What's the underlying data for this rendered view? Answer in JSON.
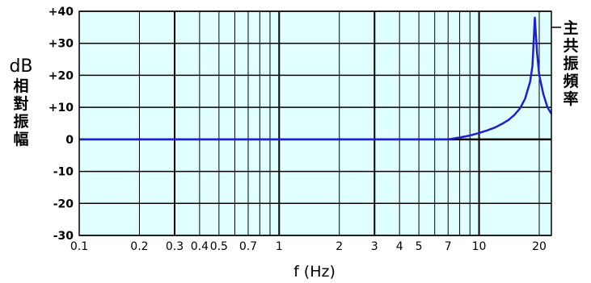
{
  "chart_data": {
    "type": "line",
    "title": "",
    "xlabel": "f (Hz)",
    "ylabel": "dB",
    "ylabel_sub": "相對振幅",
    "x_scale": "log",
    "xlim": [
      0.1,
      23
    ],
    "ylim": [
      -30,
      40
    ],
    "grid": true,
    "background_color": "#e0ffff",
    "line_color": "#1f1fd6",
    "y_ticks": [
      40,
      30,
      20,
      10,
      0,
      -10,
      -20,
      -30
    ],
    "y_tick_labels": [
      "+40",
      "+30",
      "+20",
      "+10",
      "0",
      "-10",
      "-20",
      "-30"
    ],
    "x_ticks": [
      0.1,
      0.2,
      0.3,
      0.4,
      0.5,
      0.7,
      1,
      2,
      3,
      4,
      5,
      7,
      10,
      20
    ],
    "x_tick_labels": [
      "0.1",
      "0.2",
      "0.3",
      "0.4",
      "0.5",
      "0.7",
      "1",
      "2",
      "3",
      "4",
      "5",
      "7",
      "10",
      "20"
    ],
    "x_minor": [
      0.6,
      0.8,
      0.9,
      6,
      8,
      9
    ],
    "annotation": {
      "text": "主共振頻率",
      "x": 19,
      "y": 35
    },
    "series": [
      {
        "x": [
          0.1,
          0.5,
          1,
          2,
          5,
          7,
          8,
          9,
          10,
          11,
          12,
          13,
          14,
          15,
          16,
          17,
          18,
          18.5,
          19,
          19.5,
          20,
          21,
          22,
          23
        ],
        "y": [
          0,
          0,
          0,
          0,
          0,
          0,
          0.6,
          1.2,
          2.0,
          2.8,
          3.7,
          4.8,
          6.0,
          7.6,
          9.6,
          12.7,
          18.0,
          23.0,
          38.0,
          27.0,
          20.0,
          14.0,
          10.0,
          8.0
        ]
      }
    ]
  }
}
